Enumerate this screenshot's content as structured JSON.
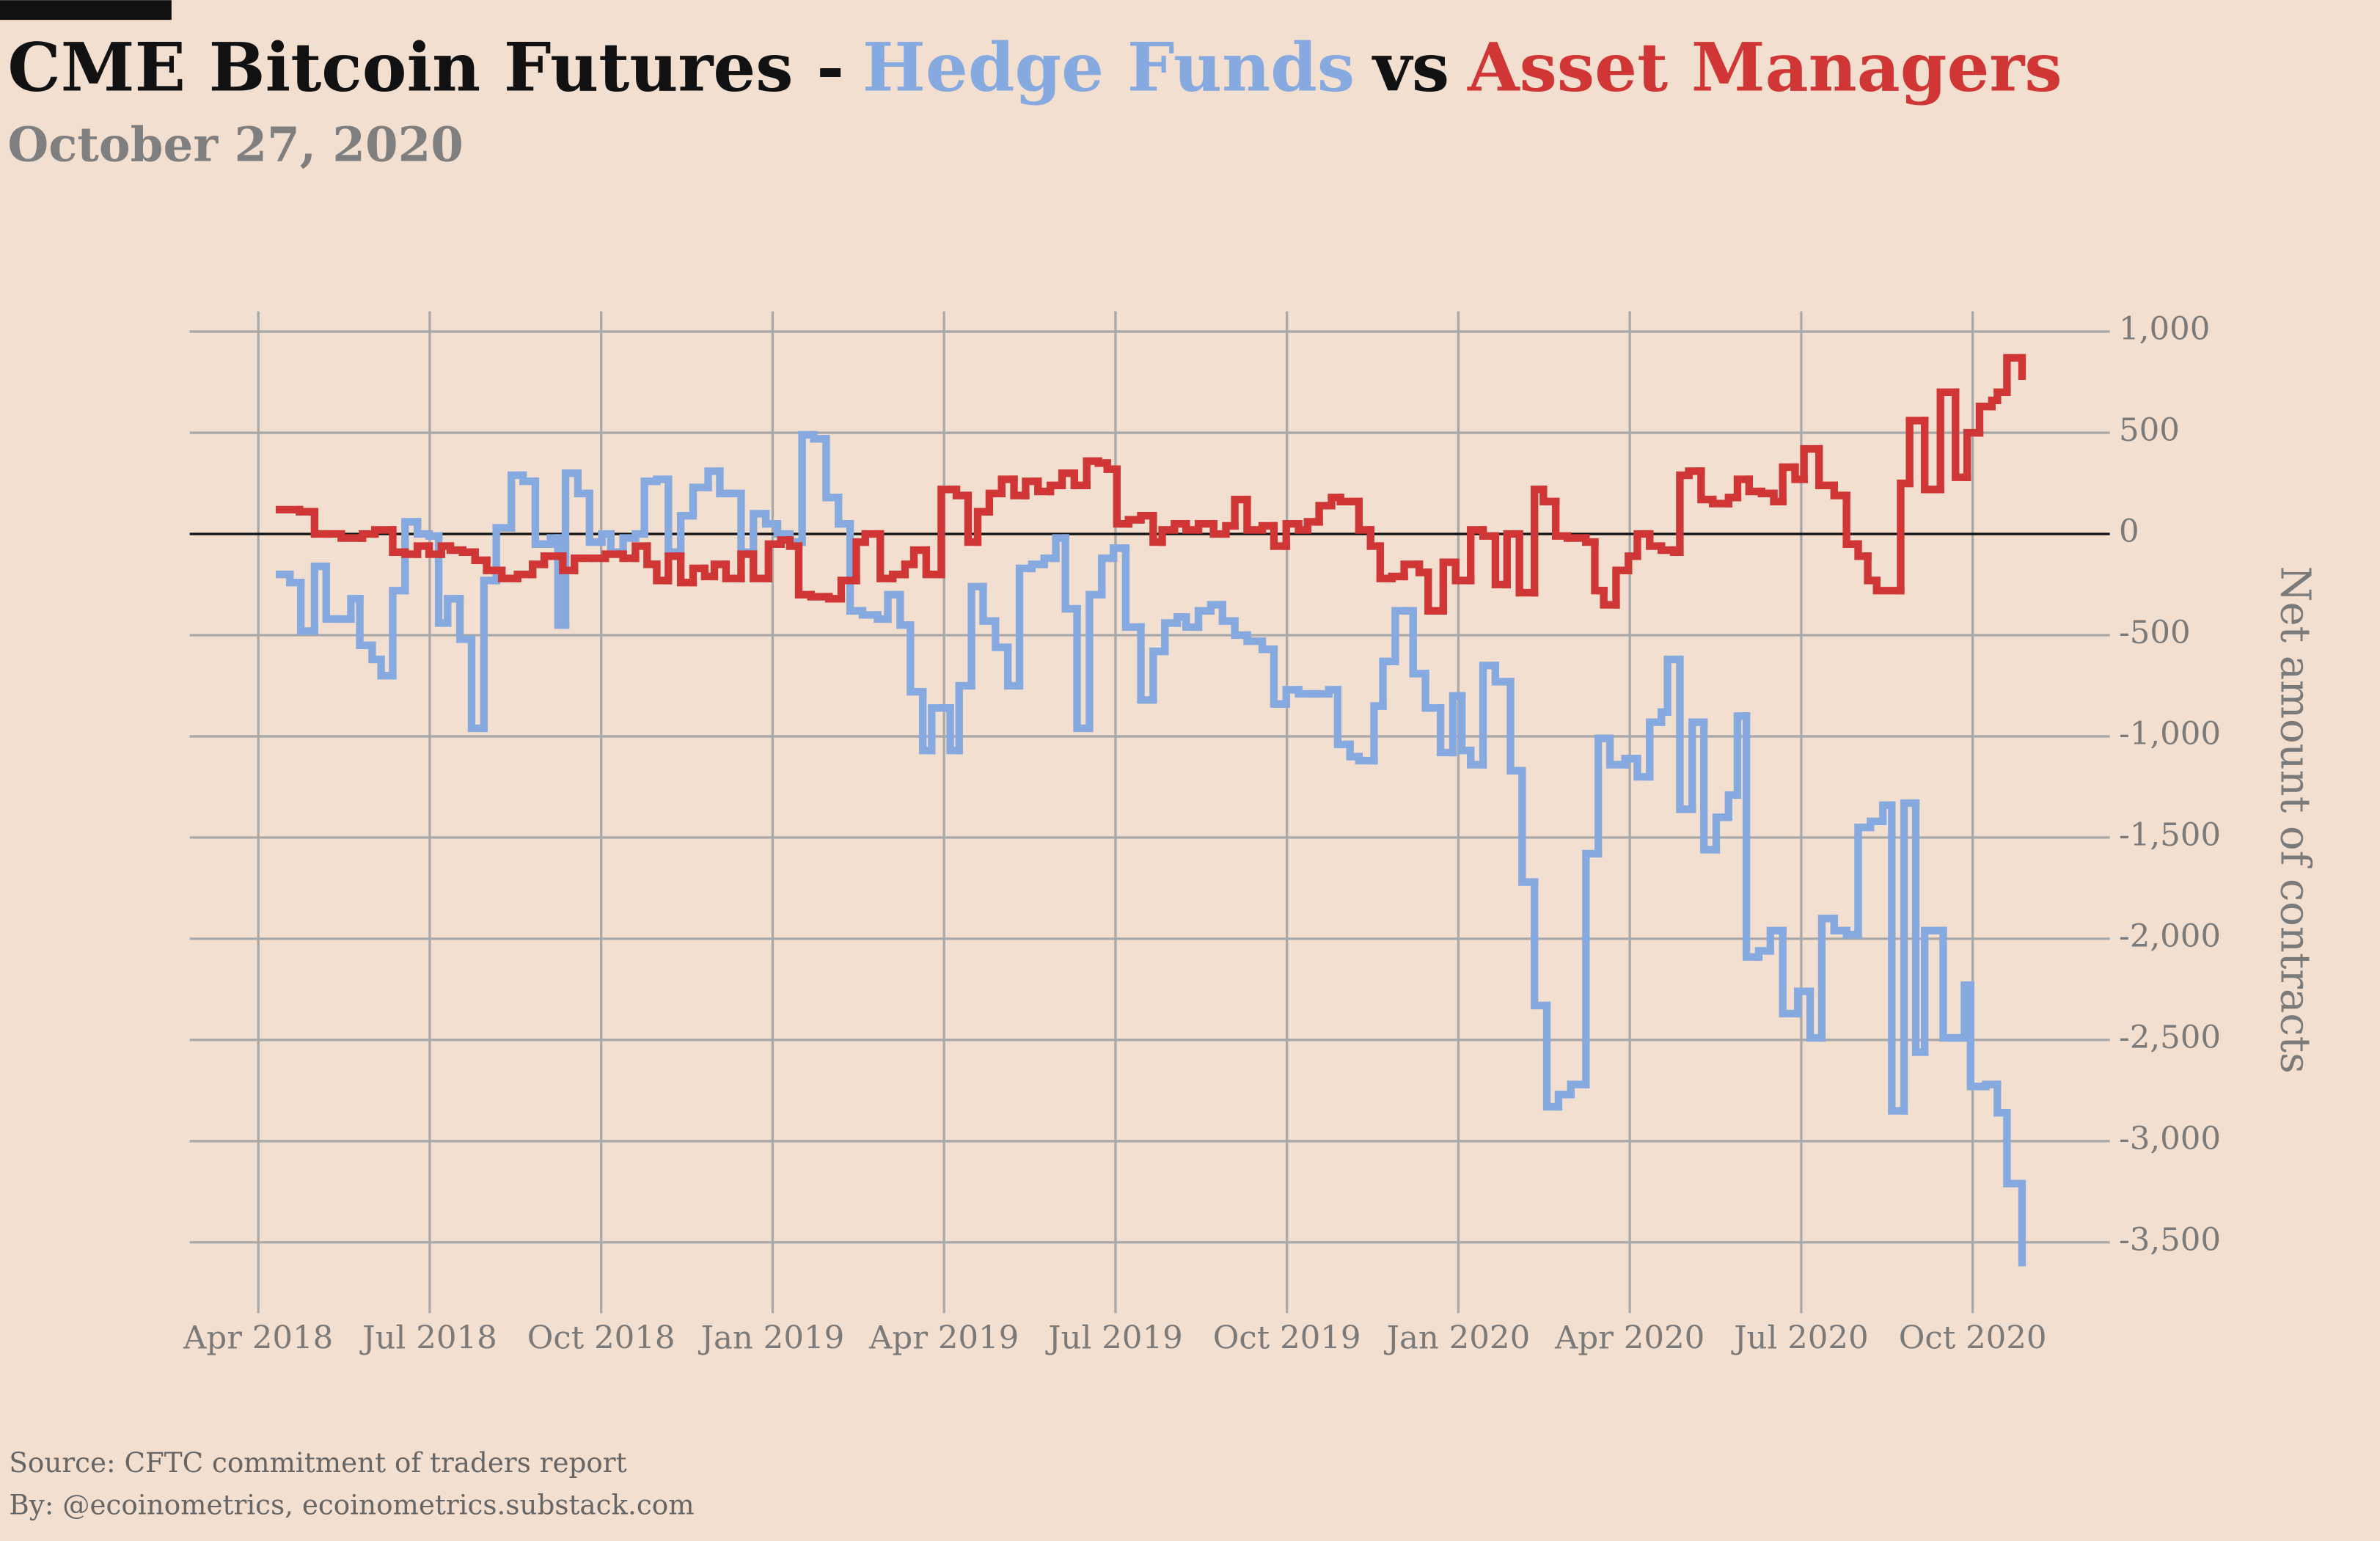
{
  "chart_data": {
    "type": "line",
    "step": "post",
    "title": "CME Bitcoin Futures -",
    "title_joiner": "vs",
    "subtitle": "October 27, 2020",
    "y_label": "Net amount of contracts",
    "source": "Source: CFTC commitment of traders report",
    "byline": "By: @ecoinometrics, ecoinometrics.substack.com",
    "y_axis_side": "right",
    "grid": true,
    "xlim": [
      2018.15,
      2020.95
    ],
    "xticks": [
      {
        "value": 2018.25,
        "label": "Apr 2018"
      },
      {
        "value": 2018.5,
        "label": "Jul 2018"
      },
      {
        "value": 2018.75,
        "label": "Oct 2018"
      },
      {
        "value": 2019.0,
        "label": "Jan 2019"
      },
      {
        "value": 2019.25,
        "label": "Apr 2019"
      },
      {
        "value": 2019.5,
        "label": "Jul 2019"
      },
      {
        "value": 2019.75,
        "label": "Oct 2019"
      },
      {
        "value": 2020.0,
        "label": "Jan 2020"
      },
      {
        "value": 2020.25,
        "label": "Apr 2020"
      },
      {
        "value": 2020.5,
        "label": "Jul 2020"
      },
      {
        "value": 2020.75,
        "label": "Oct 2020"
      }
    ],
    "ylim": [
      -3850,
      1100
    ],
    "yticks": [
      {
        "value": 1000,
        "label": "1,000"
      },
      500,
      0,
      -500,
      {
        "value": -1000,
        "label": "-1,000"
      },
      {
        "value": -1500,
        "label": "-1,500"
      },
      {
        "value": -2000,
        "label": "-2,000"
      },
      {
        "value": -2500,
        "label": "-2,500"
      },
      {
        "value": -3000,
        "label": "-3,000"
      },
      {
        "value": -3500,
        "label": "-3,500"
      }
    ],
    "series": [
      {
        "name": "Hedge Funds",
        "color": "#86a9e0",
        "x": [
          2018.281,
          2018.296,
          2018.312,
          2018.332,
          2018.349,
          2018.367,
          2018.385,
          2018.398,
          2018.416,
          2018.429,
          2018.446,
          2018.464,
          2018.482,
          2018.499,
          2018.513,
          2018.526,
          2018.544,
          2018.561,
          2018.579,
          2018.597,
          2018.619,
          2018.636,
          2018.654,
          2018.676,
          2018.687,
          2018.698,
          2018.716,
          2018.733,
          2018.751,
          2018.764,
          2018.782,
          2018.8,
          2018.813,
          2018.831,
          2018.848,
          2018.866,
          2018.884,
          2018.906,
          2018.923,
          2018.937,
          2018.954,
          2018.972,
          2018.99,
          2019.007,
          2019.025,
          2019.043,
          2019.06,
          2019.078,
          2019.096,
          2019.113,
          2019.131,
          2019.153,
          2019.168,
          2019.186,
          2019.201,
          2019.219,
          2019.232,
          2019.246,
          2019.259,
          2019.272,
          2019.29,
          2019.307,
          2019.325,
          2019.343,
          2019.36,
          2019.378,
          2019.396,
          2019.413,
          2019.427,
          2019.444,
          2019.462,
          2019.48,
          2019.497,
          2019.515,
          2019.537,
          2019.555,
          2019.572,
          2019.59,
          2019.603,
          2019.621,
          2019.639,
          2019.656,
          2019.674,
          2019.692,
          2019.714,
          2019.731,
          2019.749,
          2019.767,
          2019.789,
          2019.811,
          2019.824,
          2019.842,
          2019.855,
          2019.877,
          2019.89,
          2019.908,
          2019.921,
          2019.934,
          2019.952,
          2019.974,
          2019.992,
          2020.005,
          2020.018,
          2020.036,
          2020.054,
          2020.076,
          2020.093,
          2020.111,
          2020.129,
          2020.146,
          2020.164,
          2020.186,
          2020.204,
          2020.221,
          2020.243,
          2020.261,
          2020.279,
          2020.296,
          2020.305,
          2020.323,
          2020.341,
          2020.358,
          2020.376,
          2020.394,
          2020.407,
          2020.42,
          2020.438,
          2020.455,
          2020.473,
          2020.495,
          2020.513,
          2020.53,
          2020.548,
          2020.566,
          2020.583,
          2020.601,
          2020.619,
          2020.632,
          2020.65,
          2020.667,
          2020.68,
          2020.698,
          2020.707,
          2020.725,
          2020.738,
          2020.747,
          2020.769,
          2020.786,
          2020.8,
          2020.822
        ],
        "values": [
          -200,
          -240,
          -480,
          -160,
          -420,
          -420,
          -320,
          -550,
          -620,
          -700,
          -280,
          60,
          0,
          -10,
          -440,
          -320,
          -520,
          -960,
          -230,
          30,
          290,
          260,
          -50,
          -20,
          -450,
          300,
          200,
          -40,
          0,
          -90,
          -20,
          0,
          260,
          270,
          -90,
          90,
          230,
          310,
          200,
          200,
          -90,
          100,
          50,
          0,
          -40,
          490,
          470,
          180,
          50,
          -380,
          -400,
          -420,
          -300,
          -450,
          -780,
          -1070,
          -860,
          -860,
          -1070,
          -750,
          -260,
          -430,
          -560,
          -750,
          -170,
          -150,
          -120,
          -20,
          -370,
          -960,
          -300,
          -120,
          -70,
          -460,
          -820,
          -580,
          -440,
          -410,
          -460,
          -380,
          -350,
          -430,
          -500,
          -530,
          -570,
          -840,
          -770,
          -790,
          -790,
          -770,
          -1040,
          -1100,
          -1120,
          -850,
          -630,
          -380,
          -380,
          -690,
          -860,
          -1080,
          -800,
          -1070,
          -1140,
          -650,
          -730,
          -1170,
          -1720,
          -2330,
          -2830,
          -2770,
          -2720,
          -1580,
          -1010,
          -1140,
          -1110,
          -1200,
          -930,
          -880,
          -620,
          -1360,
          -930,
          -1560,
          -1400,
          -1290,
          -900,
          -2090,
          -2060,
          -1960,
          -2370,
          -2260,
          -2490,
          -1900,
          -1960,
          -1980,
          -1450,
          -1420,
          -1340,
          -2850,
          -1330,
          -2560,
          -1960,
          -1960,
          -2490,
          -2490,
          -2230,
          -2730,
          -2720,
          -2860,
          -3210,
          -3600
        ]
      },
      {
        "name": "Asset Managers",
        "color": "#d03636",
        "x": [
          2018.281,
          2018.31,
          2018.332,
          2018.349,
          2018.371,
          2018.402,
          2018.42,
          2018.446,
          2018.464,
          2018.482,
          2018.499,
          2018.517,
          2018.53,
          2018.548,
          2018.566,
          2018.583,
          2018.605,
          2018.628,
          2018.65,
          2018.667,
          2018.694,
          2018.711,
          2018.738,
          2018.756,
          2018.782,
          2018.8,
          2018.817,
          2018.831,
          2018.848,
          2018.866,
          2018.884,
          2018.901,
          2018.915,
          2018.932,
          2018.954,
          2018.972,
          2018.994,
          2019.012,
          2019.025,
          2019.038,
          2019.056,
          2019.082,
          2019.1,
          2019.122,
          2019.135,
          2019.157,
          2019.175,
          2019.193,
          2019.206,
          2019.224,
          2019.246,
          2019.268,
          2019.285,
          2019.299,
          2019.316,
          2019.334,
          2019.352,
          2019.369,
          2019.387,
          2019.405,
          2019.422,
          2019.44,
          2019.458,
          2019.475,
          2019.488,
          2019.502,
          2019.519,
          2019.537,
          2019.555,
          2019.568,
          2019.586,
          2019.603,
          2019.621,
          2019.643,
          2019.661,
          2019.674,
          2019.692,
          2019.714,
          2019.731,
          2019.749,
          2019.767,
          2019.78,
          2019.797,
          2019.815,
          2019.828,
          2019.855,
          2019.872,
          2019.886,
          2019.903,
          2019.921,
          2019.943,
          2019.956,
          2019.978,
          2019.996,
          2020.018,
          2020.036,
          2020.054,
          2020.071,
          2020.089,
          2020.111,
          2020.124,
          2020.142,
          2020.159,
          2020.186,
          2020.199,
          2020.212,
          2020.23,
          2020.248,
          2020.261,
          2020.279,
          2020.296,
          2020.314,
          2020.323,
          2020.336,
          2020.354,
          2020.371,
          2020.394,
          2020.407,
          2020.424,
          2020.442,
          2020.46,
          2020.473,
          2020.491,
          2020.504,
          2020.526,
          2020.548,
          2020.566,
          2020.583,
          2020.597,
          2020.61,
          2020.645,
          2020.658,
          2020.68,
          2020.703,
          2020.725,
          2020.742,
          2020.76,
          2020.778,
          2020.786,
          2020.8,
          2020.822
        ],
        "values": [
          120,
          110,
          0,
          0,
          -20,
          0,
          20,
          -90,
          -100,
          -60,
          -100,
          -60,
          -80,
          -90,
          -130,
          -180,
          -220,
          -200,
          -150,
          -110,
          -180,
          -120,
          -120,
          -100,
          -120,
          -60,
          -150,
          -230,
          -110,
          -240,
          -170,
          -210,
          -150,
          -220,
          -100,
          -220,
          -50,
          -30,
          -60,
          -300,
          -310,
          -320,
          -230,
          -40,
          0,
          -220,
          -200,
          -150,
          -80,
          -200,
          220,
          190,
          -40,
          110,
          200,
          270,
          190,
          260,
          210,
          240,
          300,
          240,
          360,
          350,
          320,
          50,
          70,
          90,
          -40,
          20,
          50,
          20,
          50,
          0,
          40,
          170,
          20,
          40,
          -60,
          50,
          20,
          60,
          140,
          180,
          160,
          20,
          -60,
          -220,
          -210,
          -150,
          -190,
          -380,
          -140,
          -230,
          20,
          -10,
          -250,
          0,
          -290,
          220,
          160,
          -10,
          -20,
          -40,
          -280,
          -350,
          -180,
          -110,
          0,
          -60,
          -80,
          -90,
          290,
          310,
          170,
          150,
          180,
          270,
          210,
          200,
          160,
          330,
          270,
          420,
          240,
          190,
          -50,
          -110,
          -230,
          -280,
          250,
          560,
          220,
          700,
          280,
          500,
          630,
          660,
          700,
          870,
          780
        ]
      }
    ]
  }
}
